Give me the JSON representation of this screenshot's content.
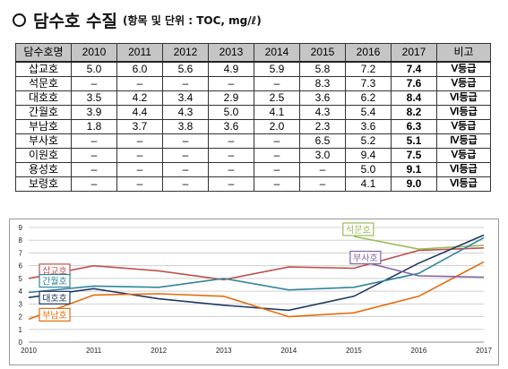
{
  "title": {
    "main": "담수호 수질",
    "unit": "(항목 및 단위 : TOC, mg/ℓ)"
  },
  "table": {
    "headers": [
      "담수호명",
      "2010",
      "2011",
      "2012",
      "2013",
      "2014",
      "2015",
      "2016",
      "2017",
      "비고"
    ],
    "rows": [
      [
        "삽교호",
        "5.0",
        "6.0",
        "5.6",
        "4.9",
        "5.9",
        "5.8",
        "7.2",
        "7.4",
        "Ⅴ등급"
      ],
      [
        "석문호",
        "–",
        "–",
        "–",
        "–",
        "–",
        "8.3",
        "7.3",
        "7.6",
        "Ⅴ등급"
      ],
      [
        "대호호",
        "3.5",
        "4.2",
        "3.4",
        "2.9",
        "2.5",
        "3.6",
        "6.2",
        "8.4",
        "Ⅵ등급"
      ],
      [
        "간월호",
        "3.9",
        "4.4",
        "4.3",
        "5.0",
        "4.1",
        "4.3",
        "5.4",
        "8.2",
        "Ⅵ등급"
      ],
      [
        "부남호",
        "1.8",
        "3.7",
        "3.8",
        "3.6",
        "2.0",
        "2.3",
        "3.6",
        "6.3",
        "Ⅴ등급"
      ],
      [
        "부사호",
        "–",
        "–",
        "–",
        "–",
        "–",
        "6.5",
        "5.2",
        "5.1",
        "Ⅳ등급"
      ],
      [
        "이원호",
        "–",
        "–",
        "–",
        "–",
        "–",
        "3.0",
        "9.4",
        "7.5",
        "Ⅴ등급"
      ],
      [
        "용성호",
        "–",
        "–",
        "–",
        "–",
        "–",
        "–",
        "5.0",
        "9.1",
        "Ⅵ등급"
      ],
      [
        "보령호",
        "–",
        "–",
        "–",
        "–",
        "–",
        "–",
        "4.1",
        "9.0",
        "Ⅵ등급"
      ]
    ]
  },
  "chart_data": {
    "type": "line",
    "x": [
      "2010",
      "2011",
      "2012",
      "2013",
      "2014",
      "2015",
      "2016",
      "2017"
    ],
    "ylim": [
      0,
      9
    ],
    "yticks": [
      "0",
      "1",
      "2",
      "3",
      "4",
      "5",
      "6",
      "7",
      "8",
      "9"
    ],
    "grid": true,
    "series": [
      {
        "name": "삽교호",
        "color": "#c0504d",
        "values": [
          5.0,
          6.0,
          5.6,
          4.9,
          5.9,
          5.8,
          7.2,
          7.4
        ]
      },
      {
        "name": "석문호",
        "color": "#9bbb59",
        "values": [
          null,
          null,
          null,
          null,
          null,
          8.3,
          7.3,
          7.6
        ]
      },
      {
        "name": "대호호",
        "color": "#1f3864",
        "values": [
          3.5,
          4.2,
          3.4,
          2.9,
          2.5,
          3.6,
          6.2,
          8.4
        ]
      },
      {
        "name": "간월호",
        "color": "#31859c",
        "values": [
          3.9,
          4.4,
          4.3,
          5.0,
          4.1,
          4.3,
          5.4,
          8.2
        ]
      },
      {
        "name": "부남호",
        "color": "#e46c0a",
        "values": [
          1.8,
          3.7,
          3.8,
          3.6,
          2.0,
          2.3,
          3.6,
          6.3
        ]
      },
      {
        "name": "부사호",
        "color": "#8064a2",
        "values": [
          null,
          null,
          null,
          null,
          null,
          6.5,
          5.2,
          5.1
        ]
      }
    ],
    "labeled_series": [
      "삽교호",
      "간월호",
      "대호호",
      "부남호",
      "석문호",
      "부사호"
    ]
  }
}
